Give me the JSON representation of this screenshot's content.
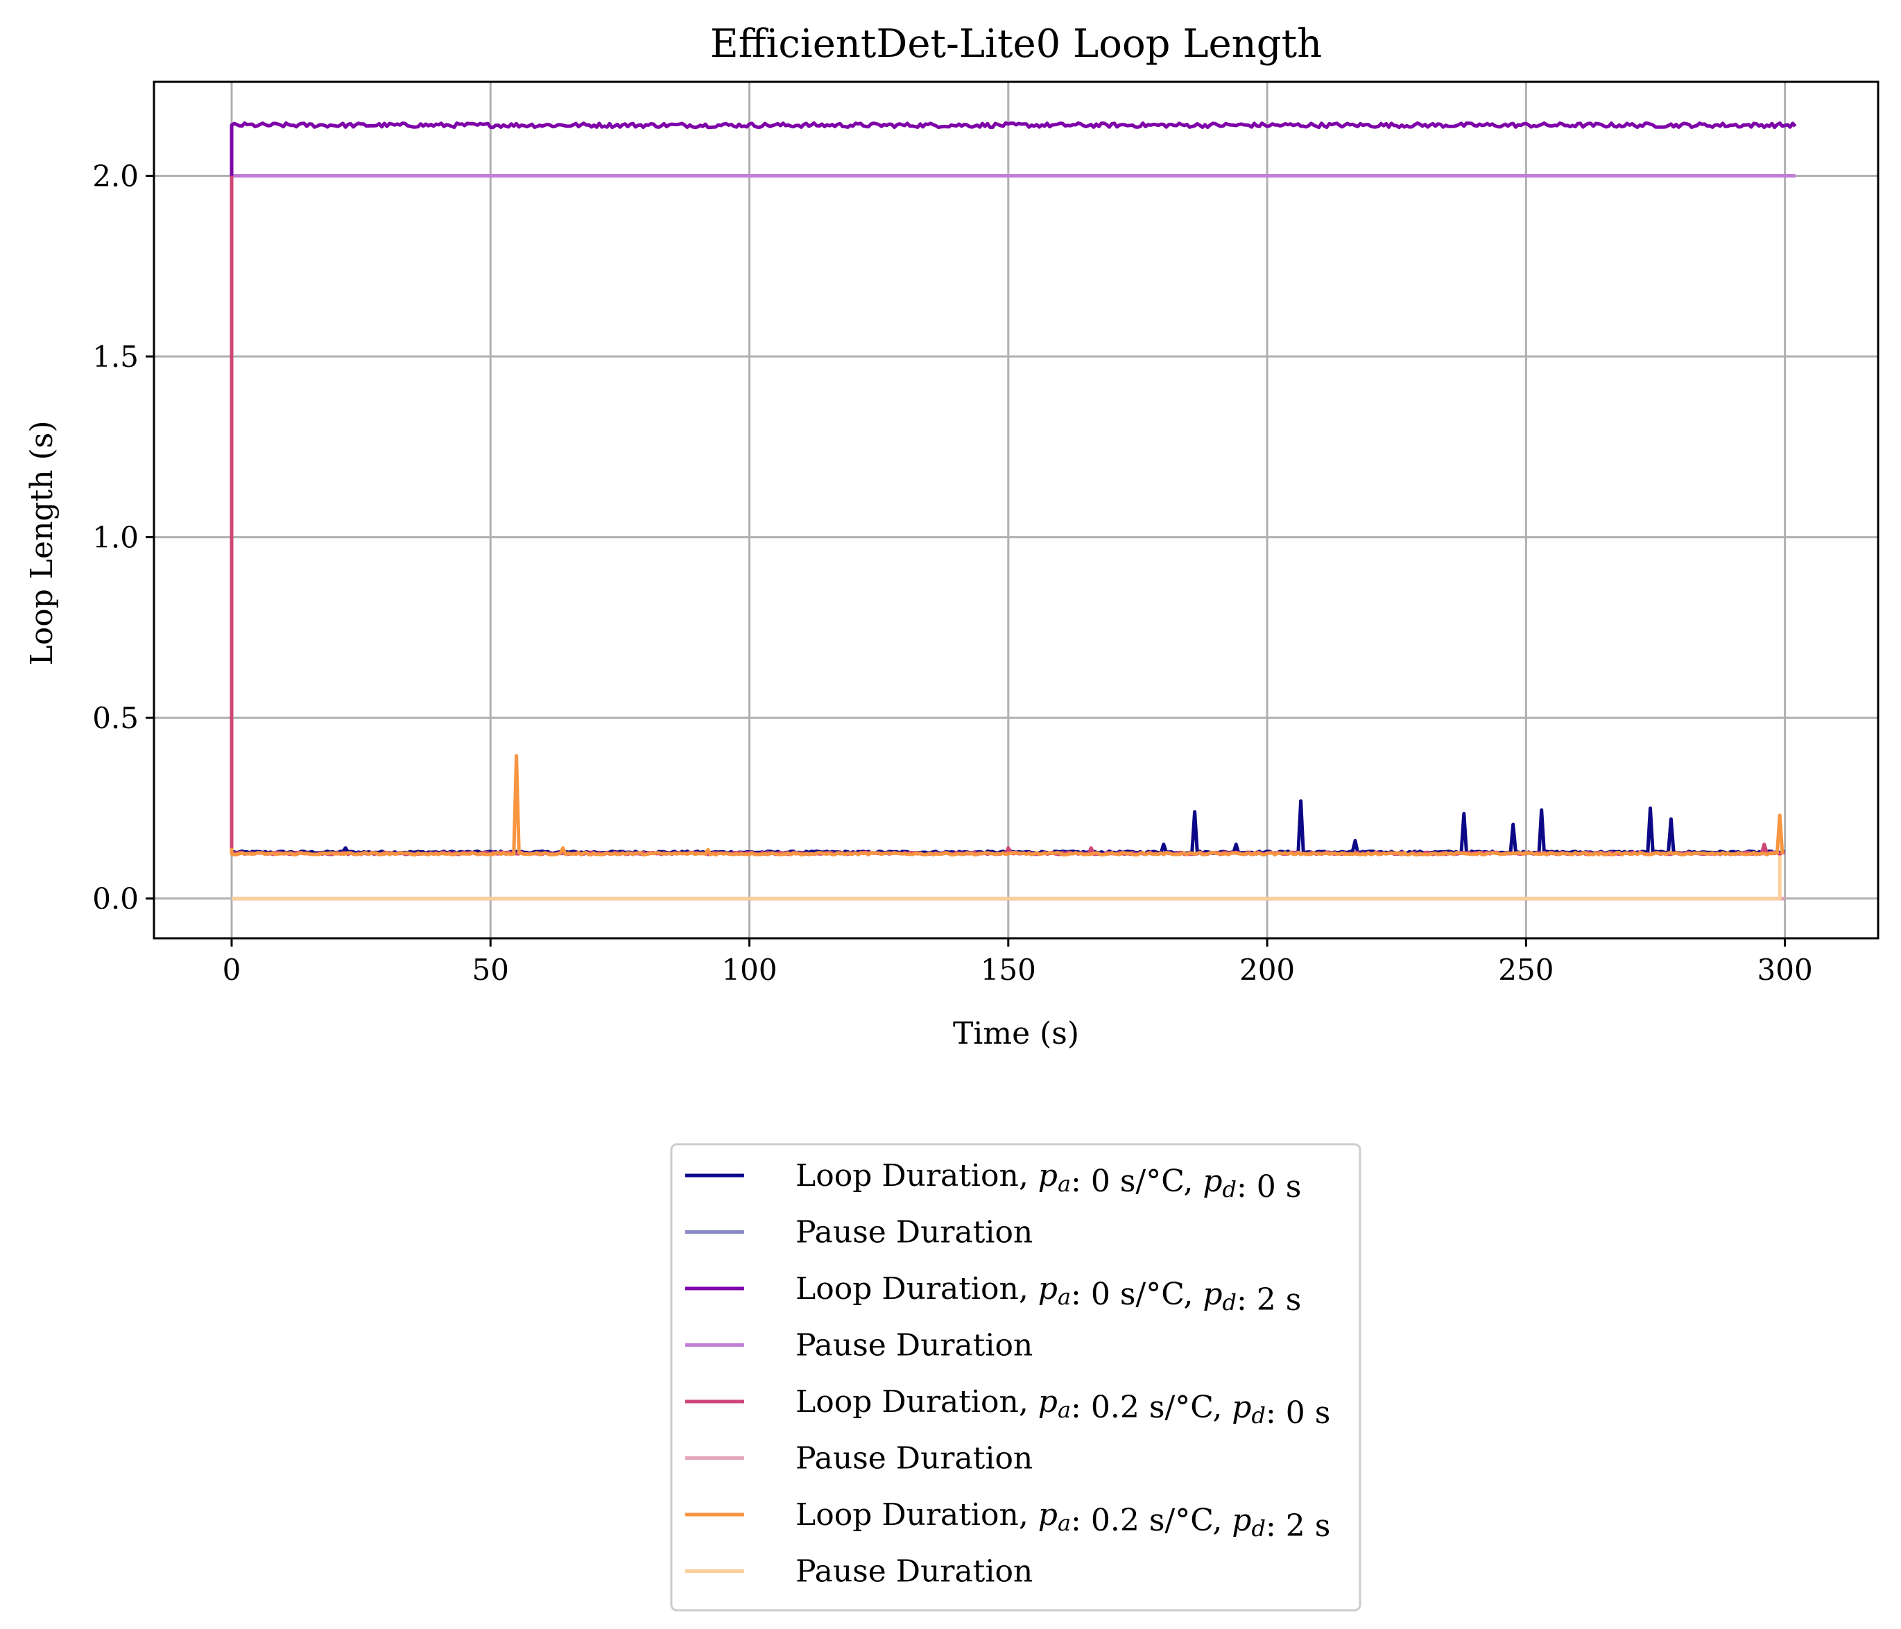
{
  "chart_data": {
    "type": "line",
    "title": "EfficientDet-Lite0 Loop Length",
    "xlabel": "Time (s)",
    "ylabel": "Loop Length (s)",
    "xlim": [
      -15,
      318
    ],
    "ylim": [
      -0.11,
      2.26
    ],
    "xticks": [
      0,
      50,
      100,
      150,
      200,
      250,
      300
    ],
    "yticks": [
      0.0,
      0.5,
      1.0,
      1.5,
      2.0
    ],
    "ytick_labels": [
      "0.0",
      "0.5",
      "1.0",
      "1.5",
      "2.0"
    ],
    "grid": true,
    "legend_position": "below plot, centered",
    "series": [
      {
        "name": "Loop Duration, pa: 0 s/°C, pd: 0 s",
        "color": "#0d0887",
        "kind": "loop",
        "baseline": 0.128,
        "x_end": 300,
        "spikes": [
          [
            22,
            0.14
          ],
          [
            180,
            0.15
          ],
          [
            186,
            0.24
          ],
          [
            194,
            0.15
          ],
          [
            206.5,
            0.27
          ],
          [
            217,
            0.16
          ],
          [
            238,
            0.235
          ],
          [
            247.5,
            0.205
          ],
          [
            253,
            0.245
          ],
          [
            274,
            0.25
          ],
          [
            278,
            0.22
          ]
        ]
      },
      {
        "name": "Pause Duration",
        "color": "#8b89c4",
        "kind": "pause",
        "value": 0.0,
        "x_end": 300
      },
      {
        "name": "Loop Duration, pa: 0 s/°C, pd: 2 s",
        "color": "#7e03a8",
        "kind": "loop",
        "baseline": 2.14,
        "x_end": 302,
        "start_drop": [
          0,
          2.0
        ],
        "spikes": []
      },
      {
        "name": "Pause Duration",
        "color": "#be7fd4",
        "kind": "pause",
        "value": 2.0,
        "x_end": 302
      },
      {
        "name": "Loop Duration, pa: 0.2 s/°C, pd: 0 s",
        "color": "#cc4778",
        "kind": "loop",
        "baseline": 0.125,
        "x_end": 300,
        "start_drop": [
          0,
          2.0
        ],
        "spikes": [
          [
            150,
            0.14
          ],
          [
            166,
            0.14
          ],
          [
            296,
            0.15
          ]
        ]
      },
      {
        "name": "Pause Duration",
        "color": "#e6a3bc",
        "kind": "pause",
        "value": 0.0,
        "x_end": 300
      },
      {
        "name": "Loop Duration, pa: 0.2 s/°C, pd: 2 s",
        "color": "#f89540",
        "kind": "loop",
        "baseline": 0.124,
        "x_end": 299.5,
        "start_drop": [
          0,
          0.14
        ],
        "spikes": [
          [
            55,
            0.395
          ],
          [
            64,
            0.14
          ],
          [
            92,
            0.135
          ],
          [
            299,
            0.23
          ]
        ]
      },
      {
        "name": "Pause Duration",
        "color": "#fbcf99",
        "kind": "pause",
        "value": 0.0,
        "x_end": 299,
        "end_rise": [
          299,
          0.12
        ]
      }
    ],
    "legend_entries": [
      {
        "prefix": "Loop Duration, ",
        "pa": "0 s/°C",
        "pd": "0 s"
      },
      {
        "plain": "Pause Duration"
      },
      {
        "prefix": "Loop Duration, ",
        "pa": "0 s/°C",
        "pd": "2 s"
      },
      {
        "plain": "Pause Duration"
      },
      {
        "prefix": "Loop Duration, ",
        "pa": "0.2 s/°C",
        "pd": "0 s"
      },
      {
        "plain": "Pause Duration"
      },
      {
        "prefix": "Loop Duration, ",
        "pa": "0.2 s/°C",
        "pd": "2 s"
      },
      {
        "plain": "Pause Duration"
      }
    ]
  }
}
